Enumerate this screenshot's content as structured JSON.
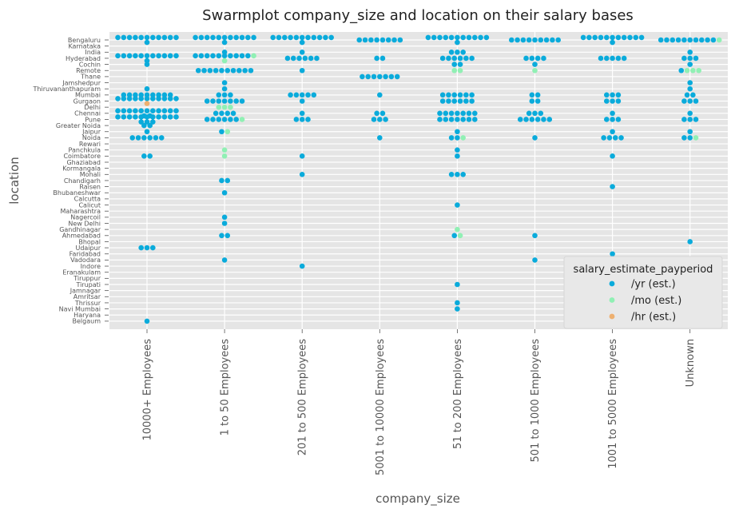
{
  "chart_data": {
    "type": "scatter",
    "kind": "swarmplot",
    "title": "Swarmplot company_size and location on their salary bases",
    "xlabel": "company_size",
    "ylabel": "location",
    "grid": true,
    "legend_placement": "lower-right",
    "categories_x": [
      "10000+ Employees",
      "1 to 50 Employees",
      "201 to 500 Employees",
      "5001 to 10000 Employees",
      "51 to 200 Employees",
      "501 to 1000 Employees",
      "1001 to 5000 Employees",
      "Unknown"
    ],
    "categories_y": [
      "Bengaluru",
      "Karnataka",
      "India",
      "Hyderabad",
      "Cochin",
      "Remote",
      "Thane",
      "Jamshedpur",
      "Thiruvananthapuram",
      "Mumbai",
      "Gurgaon",
      "Delhi",
      "Chennai",
      "Pune",
      "Greater Noida",
      "Jaipur",
      "Noida",
      "Rewari",
      "Panchkula",
      "Coimbatore",
      "Ghaziabad",
      "Kormangala",
      "Mohali",
      "Chandigarh",
      "Raisen",
      "Bhubaneshwar",
      "Calcutta",
      "Calicut",
      "Maharashtra",
      "Nagercoil",
      "New Delhi",
      "Gandhinagar",
      "Ahmedabad",
      "Bhopal",
      "Udaipur",
      "Faridabad",
      "Vadodara",
      "Indore",
      "Eranakulam",
      "Tiruppur",
      "Tirupati",
      "Jamnagar",
      "Amritsar",
      "Thrissur",
      "Navi Mumbai",
      "Haryana",
      "Belgaum"
    ],
    "hue_title": "salary_estimate_payperiod",
    "series": [
      {
        "name": "/yr (est.)",
        "color": "#0aabdb"
      },
      {
        "name": "/mo (est.)",
        "color": "#90f0b4"
      },
      {
        "name": "/hr (est.)",
        "color": "#eeb070"
      }
    ],
    "points": [
      {
        "x": "10000+ Employees",
        "y": "Bengaluru",
        "yr": 12
      },
      {
        "x": "10000+ Employees",
        "y": "Hyderabad",
        "yr": 12
      },
      {
        "x": "10000+ Employees",
        "y": "Cochin",
        "yr": 1
      },
      {
        "x": "10000+ Employees",
        "y": "Thiruvananthapuram",
        "yr": 1
      },
      {
        "x": "10000+ Employees",
        "y": "Mumbai",
        "yr": 9
      },
      {
        "x": "10000+ Employees",
        "y": "Gurgaon",
        "yr": 11,
        "hr": 1
      },
      {
        "x": "10000+ Employees",
        "y": "Chennai",
        "yr": 13
      },
      {
        "x": "10000+ Employees",
        "y": "Pune",
        "yr": 14
      },
      {
        "x": "10000+ Employees",
        "y": "Greater Noida",
        "yr": 2
      },
      {
        "x": "10000+ Employees",
        "y": "Jaipur",
        "yr": 1
      },
      {
        "x": "10000+ Employees",
        "y": "Noida",
        "yr": 6
      },
      {
        "x": "10000+ Employees",
        "y": "Coimbatore",
        "yr": 2
      },
      {
        "x": "10000+ Employees",
        "y": "Udaipur",
        "yr": 3
      },
      {
        "x": "10000+ Employees",
        "y": "Belgaum",
        "yr": 1
      },
      {
        "x": "1 to 50 Employees",
        "y": "Bengaluru",
        "yr": 12
      },
      {
        "x": "1 to 50 Employees",
        "y": "India",
        "yr": 1
      },
      {
        "x": "1 to 50 Employees",
        "y": "Hyderabad",
        "yr": 10,
        "mo": 2
      },
      {
        "x": "1 to 50 Employees",
        "y": "Remote",
        "yr": 10
      },
      {
        "x": "1 to 50 Employees",
        "y": "Jamshedpur",
        "yr": 1
      },
      {
        "x": "1 to 50 Employees",
        "y": "Thiruvananthapuram",
        "yr": 1
      },
      {
        "x": "1 to 50 Employees",
        "y": "Mumbai",
        "yr": 3
      },
      {
        "x": "1 to 50 Employees",
        "y": "Gurgaon",
        "yr": 7
      },
      {
        "x": "1 to 50 Employees",
        "y": "Delhi",
        "mo": 3
      },
      {
        "x": "1 to 50 Employees",
        "y": "Chennai",
        "yr": 4
      },
      {
        "x": "1 to 50 Employees",
        "y": "Pune",
        "yr": 6,
        "mo": 1
      },
      {
        "x": "1 to 50 Employees",
        "y": "Jaipur",
        "yr": 1,
        "mo": 1
      },
      {
        "x": "1 to 50 Employees",
        "y": "Panchkula",
        "mo": 1
      },
      {
        "x": "1 to 50 Employees",
        "y": "Coimbatore",
        "mo": 1
      },
      {
        "x": "1 to 50 Employees",
        "y": "Chandigarh",
        "yr": 2
      },
      {
        "x": "1 to 50 Employees",
        "y": "Bhubaneshwar",
        "yr": 1
      },
      {
        "x": "1 to 50 Employees",
        "y": "Nagercoil",
        "yr": 1
      },
      {
        "x": "1 to 50 Employees",
        "y": "New Delhi",
        "yr": 1
      },
      {
        "x": "1 to 50 Employees",
        "y": "Ahmedabad",
        "yr": 2
      },
      {
        "x": "1 to 50 Employees",
        "y": "Vadodara",
        "yr": 1
      },
      {
        "x": "201 to 500 Employees",
        "y": "Bengaluru",
        "yr": 12
      },
      {
        "x": "201 to 500 Employees",
        "y": "India",
        "yr": 1
      },
      {
        "x": "201 to 500 Employees",
        "y": "Hyderabad",
        "yr": 6
      },
      {
        "x": "201 to 500 Employees",
        "y": "Remote",
        "yr": 1
      },
      {
        "x": "201 to 500 Employees",
        "y": "Mumbai",
        "yr": 5
      },
      {
        "x": "201 to 500 Employees",
        "y": "Gurgaon",
        "yr": 1
      },
      {
        "x": "201 to 500 Employees",
        "y": "Chennai",
        "yr": 1
      },
      {
        "x": "201 to 500 Employees",
        "y": "Pune",
        "yr": 3
      },
      {
        "x": "201 to 500 Employees",
        "y": "Coimbatore",
        "yr": 1
      },
      {
        "x": "201 to 500 Employees",
        "y": "Mohali",
        "yr": 1
      },
      {
        "x": "201 to 500 Employees",
        "y": "Indore",
        "yr": 1
      },
      {
        "x": "5001 to 10000 Employees",
        "y": "Bengaluru",
        "yr": 8
      },
      {
        "x": "5001 to 10000 Employees",
        "y": "Hyderabad",
        "yr": 2
      },
      {
        "x": "5001 to 10000 Employees",
        "y": "Thane",
        "yr": 7
      },
      {
        "x": "5001 to 10000 Employees",
        "y": "Mumbai",
        "yr": 1
      },
      {
        "x": "5001 to 10000 Employees",
        "y": "Chennai",
        "yr": 2
      },
      {
        "x": "5001 to 10000 Employees",
        "y": "Pune",
        "yr": 3
      },
      {
        "x": "5001 to 10000 Employees",
        "y": "Noida",
        "yr": 1
      },
      {
        "x": "51 to 200 Employees",
        "y": "Bengaluru",
        "yr": 12
      },
      {
        "x": "51 to 200 Employees",
        "y": "India",
        "yr": 3
      },
      {
        "x": "51 to 200 Employees",
        "y": "Hyderabad",
        "yr": 6
      },
      {
        "x": "51 to 200 Employees",
        "y": "Cochin",
        "yr": 2
      },
      {
        "x": "51 to 200 Employees",
        "y": "Remote",
        "mo": 2
      },
      {
        "x": "51 to 200 Employees",
        "y": "Mumbai",
        "yr": 6
      },
      {
        "x": "51 to 200 Employees",
        "y": "Gurgaon",
        "yr": 6
      },
      {
        "x": "51 to 200 Employees",
        "y": "Chennai",
        "yr": 7
      },
      {
        "x": "51 to 200 Employees",
        "y": "Pune",
        "yr": 7
      },
      {
        "x": "51 to 200 Employees",
        "y": "Jaipur",
        "yr": 1
      },
      {
        "x": "51 to 200 Employees",
        "y": "Noida",
        "yr": 2,
        "mo": 1
      },
      {
        "x": "51 to 200 Employees",
        "y": "Panchkula",
        "yr": 1
      },
      {
        "x": "51 to 200 Employees",
        "y": "Coimbatore",
        "yr": 1
      },
      {
        "x": "51 to 200 Employees",
        "y": "Mohali",
        "yr": 3
      },
      {
        "x": "51 to 200 Employees",
        "y": "Calicut",
        "yr": 1
      },
      {
        "x": "51 to 200 Employees",
        "y": "Gandhinagar",
        "mo": 1
      },
      {
        "x": "51 to 200 Employees",
        "y": "Ahmedabad",
        "yr": 1,
        "mo": 1
      },
      {
        "x": "51 to 200 Employees",
        "y": "Tirupati",
        "yr": 1
      },
      {
        "x": "51 to 200 Employees",
        "y": "Thrissur",
        "yr": 1
      },
      {
        "x": "51 to 200 Employees",
        "y": "Navi Mumbai",
        "yr": 1
      },
      {
        "x": "501 to 1000 Employees",
        "y": "Bengaluru",
        "yr": 9
      },
      {
        "x": "501 to 1000 Employees",
        "y": "Hyderabad",
        "yr": 4
      },
      {
        "x": "501 to 1000 Employees",
        "y": "Cochin",
        "yr": 1
      },
      {
        "x": "501 to 1000 Employees",
        "y": "Remote",
        "mo": 1
      },
      {
        "x": "501 to 1000 Employees",
        "y": "Mumbai",
        "yr": 2
      },
      {
        "x": "501 to 1000 Employees",
        "y": "Gurgaon",
        "yr": 2
      },
      {
        "x": "501 to 1000 Employees",
        "y": "Chennai",
        "yr": 3
      },
      {
        "x": "501 to 1000 Employees",
        "y": "Pune",
        "yr": 6
      },
      {
        "x": "501 to 1000 Employees",
        "y": "Noida",
        "yr": 1
      },
      {
        "x": "501 to 1000 Employees",
        "y": "Ahmedabad",
        "yr": 1
      },
      {
        "x": "501 to 1000 Employees",
        "y": "Vadodara",
        "yr": 1
      },
      {
        "x": "1001 to 5000 Employees",
        "y": "Bengaluru",
        "yr": 12
      },
      {
        "x": "1001 to 5000 Employees",
        "y": "Hyderabad",
        "yr": 5
      },
      {
        "x": "1001 to 5000 Employees",
        "y": "Mumbai",
        "yr": 3
      },
      {
        "x": "1001 to 5000 Employees",
        "y": "Gurgaon",
        "yr": 3
      },
      {
        "x": "1001 to 5000 Employees",
        "y": "Chennai",
        "yr": 1
      },
      {
        "x": "1001 to 5000 Employees",
        "y": "Pune",
        "yr": 3
      },
      {
        "x": "1001 to 5000 Employees",
        "y": "Jaipur",
        "yr": 1
      },
      {
        "x": "1001 to 5000 Employees",
        "y": "Noida",
        "yr": 4
      },
      {
        "x": "1001 to 5000 Employees",
        "y": "Coimbatore",
        "yr": 1
      },
      {
        "x": "1001 to 5000 Employees",
        "y": "Raisen",
        "yr": 1
      },
      {
        "x": "1001 to 5000 Employees",
        "y": "Faridabad",
        "yr": 1
      },
      {
        "x": "Unknown",
        "y": "Bengaluru",
        "yr": 10,
        "mo": 1
      },
      {
        "x": "Unknown",
        "y": "India",
        "yr": 1
      },
      {
        "x": "Unknown",
        "y": "Hyderabad",
        "yr": 3
      },
      {
        "x": "Unknown",
        "y": "Cochin",
        "yr": 1
      },
      {
        "x": "Unknown",
        "y": "Remote",
        "mo": 3,
        "yr": 1
      },
      {
        "x": "Unknown",
        "y": "Jamshedpur",
        "yr": 1
      },
      {
        "x": "Unknown",
        "y": "Thiruvananthapuram",
        "yr": 1
      },
      {
        "x": "Unknown",
        "y": "Mumbai",
        "yr": 2
      },
      {
        "x": "Unknown",
        "y": "Gurgaon",
        "yr": 3
      },
      {
        "x": "Unknown",
        "y": "Chennai",
        "yr": 1
      },
      {
        "x": "Unknown",
        "y": "Pune",
        "yr": 3
      },
      {
        "x": "Unknown",
        "y": "Jaipur",
        "yr": 1
      },
      {
        "x": "Unknown",
        "y": "Noida",
        "yr": 2,
        "mo": 1
      },
      {
        "x": "Unknown",
        "y": "Bhopal",
        "yr": 1
      }
    ]
  }
}
